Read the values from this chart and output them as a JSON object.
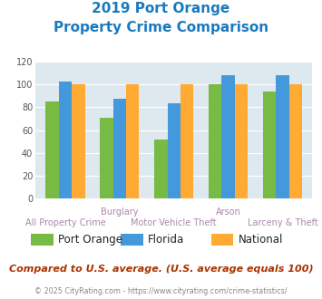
{
  "title_line1": "2019 Port Orange",
  "title_line2": "Property Crime Comparison",
  "title_color": "#1a7abf",
  "categories": [
    "All Property Crime",
    "Burglary",
    "Motor Vehicle Theft",
    "Arson",
    "Larceny & Theft"
  ],
  "series": {
    "Port Orange": [
      85,
      71,
      52,
      100,
      94
    ],
    "Florida": [
      102,
      87,
      83,
      108,
      108
    ],
    "National": [
      100,
      100,
      100,
      100,
      100
    ]
  },
  "colors": {
    "Port Orange": "#77bb44",
    "Florida": "#4499dd",
    "National": "#ffaa33"
  },
  "ylim": [
    0,
    120
  ],
  "yticks": [
    0,
    20,
    40,
    60,
    80,
    100,
    120
  ],
  "background_color": "#dde8ef",
  "footer_text": "Compared to U.S. average. (U.S. average equals 100)",
  "footer_color": "#aa3300",
  "credit_text": "© 2025 CityRating.com - https://www.cityrating.com/crime-statistics/",
  "credit_color": "#888888",
  "legend_entries": [
    "Port Orange",
    "Florida",
    "National"
  ],
  "xlabel_row1": [
    "",
    "Burglary",
    "",
    "Arson",
    ""
  ],
  "xlabel_row2": [
    "All Property Crime",
    "",
    "Motor Vehicle Theft",
    "",
    "Larceny & Theft"
  ],
  "xlabel_color": "#aa88aa"
}
